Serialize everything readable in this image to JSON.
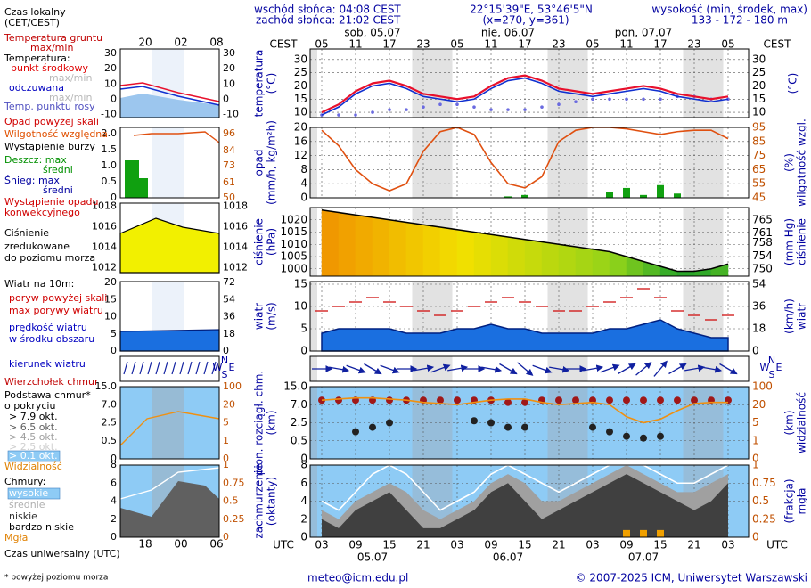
{
  "header": {
    "sunrise": "wschód słońca: 04:08 CEST",
    "sunset": "zachód słońca: 21:02 CEST",
    "coords": "22°15'39\"E, 53°46'5\"N",
    "grid": "(x=270, y=361)",
    "height_title": "wysokość (min, środek, max)",
    "height_values": "133 - 172 - 180 m"
  },
  "time_axis": {
    "local_label": "CEST",
    "utc_label": "UTC",
    "cest": [
      "05",
      null,
      "11",
      null,
      "17",
      null,
      "23",
      null,
      "05",
      null,
      "11",
      null,
      "17",
      null,
      "23",
      null,
      "05",
      null,
      "11",
      null,
      "17",
      null,
      "23",
      null,
      "05"
    ],
    "utc": [
      "03",
      null,
      "09",
      null,
      "15",
      null,
      "21",
      null,
      "03",
      null,
      "09",
      null,
      "15",
      null,
      "21",
      null,
      "03",
      null,
      "09",
      null,
      "15",
      null,
      "21",
      null,
      "03"
    ],
    "days_top": [
      "sob, 05.07",
      "nie, 06.07",
      "pon, 07.07"
    ],
    "dates_bottom": [
      "05.07",
      "06.07",
      "07.07"
    ]
  },
  "chart_data": [
    {
      "type": "line",
      "ylabel": [
        "temperatura",
        "(°C)"
      ],
      "y2label": [
        "(°C)"
      ],
      "ylim": [
        8,
        34
      ],
      "yticks": [
        10,
        15,
        20,
        25,
        30
      ],
      "y2lim": [
        8,
        34
      ],
      "y2ticks": [
        10,
        15,
        20,
        25,
        30
      ],
      "grid": true,
      "series": [
        {
          "style": "dots",
          "color": "#6a6ae0",
          "values": [
            9,
            9,
            9,
            10,
            11,
            11,
            12,
            13,
            13,
            12,
            11,
            11,
            11,
            12,
            13,
            14,
            15,
            15,
            15,
            15,
            15,
            16,
            16,
            15,
            15
          ]
        },
        {
          "style": "line",
          "color": "#1030d0",
          "values": [
            9,
            12,
            17,
            20,
            21,
            19,
            16,
            15,
            14,
            15,
            19,
            22,
            23,
            21,
            18,
            17,
            16,
            17,
            18,
            19,
            18,
            16,
            15,
            14,
            15
          ]
        },
        {
          "style": "line",
          "color": "#e8102c",
          "values": [
            10,
            13,
            18,
            21,
            22,
            20,
            17,
            16,
            15,
            16,
            20,
            23,
            24,
            22,
            19,
            18,
            17,
            18,
            19,
            20,
            19,
            17,
            16,
            15,
            16
          ]
        }
      ]
    },
    {
      "type": "bar",
      "ylabel": [
        "opad",
        "(mm/h, kg/m²h)"
      ],
      "y2label": [
        "(%)",
        "wilgotność wzgl."
      ],
      "ylim": [
        0,
        20
      ],
      "yticks": [
        0,
        4,
        8,
        12,
        16,
        20
      ],
      "y2lim": [
        45,
        95
      ],
      "y2ticks": [
        45,
        55,
        65,
        75,
        85,
        95
      ],
      "grid": true,
      "series": [
        {
          "style": "bars",
          "color": "#10a010",
          "values": [
            0,
            0,
            0,
            0,
            0,
            0,
            0,
            0,
            0,
            0,
            0,
            0.4,
            0.8,
            0,
            0,
            0,
            0,
            1.6,
            2.8,
            0.8,
            3.6,
            1.2,
            0,
            0,
            0
          ]
        },
        {
          "style": "line",
          "axis": "y2",
          "color": "#e05010",
          "values": [
            93,
            82,
            65,
            55,
            50,
            55,
            78,
            92,
            95,
            90,
            70,
            55,
            52,
            60,
            85,
            93,
            95,
            95,
            94,
            92,
            90,
            92,
            93,
            93,
            87
          ]
        }
      ]
    },
    {
      "type": "area",
      "ylabel": [
        "ciśnienie",
        "(hPa)"
      ],
      "y2label": [
        "(mm Hg)",
        "ciśnienie"
      ],
      "ylim": [
        997,
        1025
      ],
      "yticks": [
        1000,
        1005,
        1010,
        1015,
        1020
      ],
      "y2lim": [
        747.8,
        768.8
      ],
      "y2ticks": [
        750,
        754,
        758,
        761,
        765
      ],
      "grid": true,
      "series": [
        {
          "style": "gradient",
          "color": "#000000",
          "colors": [
            "#0e9a2e",
            "#8fd21a",
            "#f2e000",
            "#f08a00"
          ],
          "values": [
            1024,
            1023,
            1022,
            1021,
            1020,
            1019,
            1018,
            1017,
            1016,
            1015,
            1014,
            1013,
            1012,
            1011,
            1010,
            1009,
            1008,
            1007,
            1005,
            1003,
            1001,
            999,
            999,
            1000,
            1002
          ]
        }
      ]
    },
    {
      "type": "area",
      "ylabel": [
        "wiatr",
        "(m/s)"
      ],
      "y2label": [
        "(km/h)",
        "wiatr"
      ],
      "ylim": [
        0,
        15.6
      ],
      "yticks": [
        0,
        5,
        10,
        15
      ],
      "y2lim": [
        0,
        56.2
      ],
      "y2ticks": [
        0,
        18,
        36,
        54
      ],
      "grid": true,
      "series": [
        {
          "style": "fill",
          "color": "#1a6fe0",
          "values": [
            4,
            5,
            5,
            5,
            5,
            4,
            4,
            4,
            5,
            5,
            6,
            5,
            5,
            4,
            4,
            4,
            4,
            5,
            5,
            6,
            7,
            5,
            4,
            3,
            3
          ]
        },
        {
          "style": "dashes",
          "color": "#d01010",
          "values": [
            9,
            10,
            11,
            12,
            11,
            10,
            9,
            8,
            9,
            10,
            11,
            12,
            11,
            10,
            9,
            9,
            10,
            11,
            12,
            14,
            12,
            9,
            8,
            7,
            8
          ]
        }
      ]
    },
    {
      "type": "quiver",
      "compass": [
        "N",
        "W",
        "E",
        "S"
      ],
      "series": [
        {
          "style": "arrows",
          "color": "#1020a0",
          "values": [
            270,
            280,
            290,
            300,
            290,
            270,
            260,
            250,
            260,
            270,
            280,
            300,
            310,
            290,
            280,
            270,
            260,
            250,
            240,
            230,
            220,
            240,
            260,
            280,
            300
          ]
        }
      ]
    },
    {
      "type": "scatter",
      "ylabel": [
        "pion. rozciągł. chm.",
        "(km)"
      ],
      "y2label": [
        "(km)",
        "widzialność"
      ],
      "yscale": "piecewise",
      "ylim": [
        0,
        15
      ],
      "yticks": [
        0,
        0.5,
        2.5,
        {
          "value": 7,
          "label": "7.0"
        },
        {
          "value": 15,
          "label": "15.0"
        }
      ],
      "y2lim": [
        0,
        100
      ],
      "y2ticks": [
        0,
        1,
        5,
        20,
        100
      ],
      "grid": true,
      "background": "#8ecbf5",
      "series": [
        {
          "style": "dots",
          "color": "#a01818",
          "values": [
            9,
            9,
            9,
            9,
            9,
            9,
            9,
            9,
            9,
            9,
            9,
            8,
            8,
            9,
            9,
            9,
            9,
            9,
            9,
            9,
            9,
            9,
            9,
            9,
            9
          ]
        },
        {
          "style": "dots",
          "color": "#222222",
          "values": [
            null,
            null,
            1.5,
            2,
            2.5,
            null,
            null,
            null,
            null,
            3,
            2.5,
            2,
            2,
            null,
            null,
            null,
            2,
            1.5,
            1,
            0.8,
            1,
            null,
            null,
            null,
            null
          ]
        },
        {
          "style": "line",
          "axis": "y2",
          "color": "#f09010",
          "values": [
            40,
            45,
            50,
            50,
            45,
            40,
            30,
            25,
            20,
            30,
            40,
            45,
            45,
            30,
            20,
            25,
            30,
            20,
            10,
            5,
            8,
            15,
            25,
            30,
            30
          ]
        }
      ]
    },
    {
      "type": "stack",
      "ylabel": [
        "zachmurzenie",
        "(oktanty)"
      ],
      "y2label": [
        "(frakcja)",
        "mgła"
      ],
      "ylim": [
        0,
        8
      ],
      "yticks": [
        0,
        2,
        4,
        6,
        8
      ],
      "y2lim": [
        0,
        1
      ],
      "y2ticks": [
        0,
        0.25,
        0.5,
        0.75,
        1
      ],
      "grid": true,
      "background": "#8ecbf5",
      "series": [
        {
          "style": "fill",
          "color": "#a0a0a0",
          "values": [
            3,
            2,
            4,
            5,
            6,
            5,
            3,
            2,
            3,
            4,
            6,
            7,
            6,
            4,
            4,
            5,
            6,
            7,
            8,
            7,
            6,
            5,
            5,
            6,
            7
          ]
        },
        {
          "style": "fill",
          "color": "#404040",
          "values": [
            2,
            1,
            3,
            4,
            5,
            3,
            1,
            1,
            2,
            3,
            5,
            6,
            4,
            2,
            3,
            4,
            5,
            6,
            7,
            6,
            5,
            4,
            3,
            4,
            6
          ]
        },
        {
          "style": "line",
          "color": "#ffffff",
          "values": [
            4,
            3,
            5,
            7,
            8,
            7,
            5,
            3,
            4,
            5,
            7,
            8,
            7,
            6,
            5,
            6,
            7,
            8,
            8,
            8,
            7,
            6,
            6,
            7,
            8
          ]
        },
        {
          "style": "bars",
          "axis": "y2",
          "color": "#f0a000",
          "values": [
            0,
            0,
            0,
            0,
            0,
            0,
            0,
            0,
            0,
            0,
            0,
            0,
            0,
            0,
            0,
            0,
            0,
            0,
            0.1,
            0.1,
            0.1,
            0,
            0,
            0,
            0
          ]
        }
      ]
    }
  ],
  "legend_texts": [
    "Czas lokalny",
    "(CET/CEST)",
    "Temperatura gruntu",
    "max/min",
    "Temperatura:",
    "punkt środkowy",
    "max/min",
    "odczuwana",
    "max/min",
    "Temp. punktu rosy",
    "Opad powyżej skali",
    "Wilgotność względna",
    "Wystąpienie burzy",
    "Deszcz: max",
    "średni",
    "Śnieg: max",
    "średni",
    "Wystąpienie opadu",
    "konwekcyjnego",
    "Ciśnienie",
    "zredukowane",
    "do poziomu morza",
    "Wiatr na 10m:",
    "poryw powyżej skali",
    "max porywy wiatru",
    "prędkość wiatru",
    "w środku obszaru",
    "kierunek wiatru",
    "Wierzchołek chmur",
    "Podstawa chmur*",
    "o pokryciu",
    "> 7.9 okt.",
    "> 6.5 okt.",
    "> 4.5 okt.",
    "> 2.5 okt.",
    "> 0.1 okt.",
    "Widzialność",
    "Chmury:",
    "wysokie",
    "średnie",
    "niskie",
    "bardzo niskie",
    "Mgła",
    "Czas uniwersalny (UTC)",
    "* powyżej poziomu morza"
  ],
  "legend_time": {
    "top": [
      "20",
      "02",
      "08"
    ],
    "bottom": [
      "18",
      "00",
      "06"
    ]
  },
  "legend_panels": [
    {
      "ylim": [
        -12,
        33
      ],
      "yticks": [
        -10,
        0,
        10,
        20,
        30
      ],
      "y2lim": [
        -12,
        33
      ],
      "y2ticks": [
        -10,
        0,
        10,
        20,
        30
      ]
    },
    {
      "ylim": [
        0,
        2.2
      ],
      "yticks": [
        0,
        {
          "value": 0.5,
          "label": "0.5"
        },
        {
          "value": 1,
          "label": "1.0"
        },
        {
          "value": 1.5,
          "label": "1.5"
        },
        {
          "value": 2,
          "label": "2.0"
        }
      ],
      "y2lim": [
        50,
        100.6
      ],
      "y2ticks": [
        50,
        61,
        73,
        84,
        96
      ]
    },
    {
      "ylim": [
        1011.5,
        1018.3
      ],
      "yticks": [
        1012,
        1014,
        1016,
        1018
      ],
      "y2lim": [
        1011.5,
        1018.3
      ],
      "y2ticks": [
        1012,
        1014,
        1016,
        1018
      ]
    },
    {
      "ylim": [
        0,
        20.3
      ],
      "yticks": [
        0,
        5,
        10,
        15,
        20
      ],
      "y2lim": [
        0,
        73
      ],
      "y2ticks": [
        0,
        18,
        36,
        54,
        72
      ]
    },
    {
      "yscale": "piecewise",
      "ylim": [
        0,
        15
      ],
      "yticks": [
        0,
        0.5,
        2.5,
        {
          "value": 7,
          "label": "7.0"
        },
        {
          "value": 15,
          "label": "15.0"
        }
      ],
      "y2lim": [
        0,
        100
      ],
      "y2ticks": [
        0,
        1,
        5,
        20,
        100
      ]
    },
    {
      "ylim": [
        0,
        8
      ],
      "yticks": [
        0,
        2,
        4,
        6,
        8
      ],
      "y2lim": [
        0,
        1
      ],
      "y2ticks": [
        0,
        0.25,
        0.5,
        0.75,
        1
      ]
    }
  ],
  "footer": {
    "email": "meteo@icm.edu.pl",
    "copyright": "© 2007-2025 ICM, Uniwersytet Warszawski"
  }
}
